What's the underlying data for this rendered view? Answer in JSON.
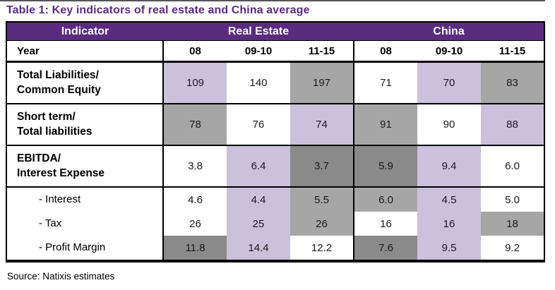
{
  "title": "Table 1: Key indicators of real estate and China average",
  "source": "Source: Natixis estimates",
  "colors": {
    "header_bg": "#5B2B80",
    "title_text": "#5C2B83",
    "cell_purple": "#CCC1DA",
    "cell_gray": "#A6A6A6",
    "cell_darkgray": "#8A8A8A",
    "cell_white": "#FFFFFF",
    "border": "#000000"
  },
  "table": {
    "header": {
      "indicator_label": "Indicator",
      "group_labels": [
        "Real Estate",
        "China"
      ],
      "year_label": "Year",
      "year_columns": [
        "08",
        "09-10",
        "11-15",
        "08",
        "09-10",
        "11-15"
      ]
    },
    "rows": [
      {
        "label_lines": [
          "Total Liabilities/",
          "Common Equity"
        ],
        "values": [
          "109",
          "140",
          "197",
          "71",
          "70",
          "83"
        ],
        "fills": [
          "purple",
          "white",
          "gray",
          "white",
          "purple",
          "gray"
        ]
      },
      {
        "label_lines": [
          "Short term/",
          "Total liabilities"
        ],
        "values": [
          "78",
          "76",
          "74",
          "91",
          "90",
          "88"
        ],
        "fills": [
          "gray",
          "white",
          "purple",
          "gray",
          "white",
          "purple"
        ]
      },
      {
        "label_lines": [
          "EBITDA/",
          "Interest Expense"
        ],
        "values": [
          "3.8",
          "6.4",
          "3.7",
          "5.9",
          "9.4",
          "6.0"
        ],
        "fills": [
          "white",
          "purple",
          "darkgray",
          "darkgray",
          "purple",
          "white"
        ]
      },
      {
        "label_lines": [
          "- Interest"
        ],
        "values": [
          "4.6",
          "4.4",
          "5.5",
          "6.0",
          "4.5",
          "5.0"
        ],
        "fills": [
          "white",
          "purple",
          "gray",
          "gray",
          "purple",
          "white"
        ]
      },
      {
        "label_lines": [
          "- Tax"
        ],
        "values": [
          "26",
          "25",
          "26",
          "16",
          "16",
          "18"
        ],
        "fills": [
          "white",
          "purple",
          "gray",
          "white",
          "purple",
          "gray"
        ]
      },
      {
        "label_lines": [
          "- Profit Margin"
        ],
        "values": [
          "11.8",
          "14.4",
          "12.2",
          "7.6",
          "9.5",
          "9.2"
        ],
        "fills": [
          "darkgray",
          "purple",
          "white",
          "darkgray",
          "purple",
          "white"
        ]
      }
    ]
  },
  "chart_data": {
    "type": "table",
    "title": "Table 1: Key indicators of real estate and China average",
    "column_groups": [
      {
        "label": "Real Estate",
        "columns": [
          "08",
          "09-10",
          "11-15"
        ]
      },
      {
        "label": "China",
        "columns": [
          "08",
          "09-10",
          "11-15"
        ]
      }
    ],
    "rows": [
      {
        "indicator": "Total Liabilities/Common Equity",
        "real_estate": [
          109,
          140,
          197
        ],
        "china": [
          71,
          70,
          83
        ]
      },
      {
        "indicator": "Short term/Total liabilities",
        "real_estate": [
          78,
          76,
          74
        ],
        "china": [
          91,
          90,
          88
        ]
      },
      {
        "indicator": "EBITDA/Interest Expense",
        "real_estate": [
          3.8,
          6.4,
          3.7
        ],
        "china": [
          5.9,
          9.4,
          6.0
        ]
      },
      {
        "indicator": "Interest",
        "real_estate": [
          4.6,
          4.4,
          5.5
        ],
        "china": [
          6.0,
          4.5,
          5.0
        ]
      },
      {
        "indicator": "Tax",
        "real_estate": [
          26,
          25,
          26
        ],
        "china": [
          16,
          16,
          18
        ]
      },
      {
        "indicator": "Profit Margin",
        "real_estate": [
          11.8,
          14.4,
          12.2
        ],
        "china": [
          7.6,
          9.5,
          9.2
        ]
      }
    ],
    "source": "Source: Natixis estimates"
  }
}
